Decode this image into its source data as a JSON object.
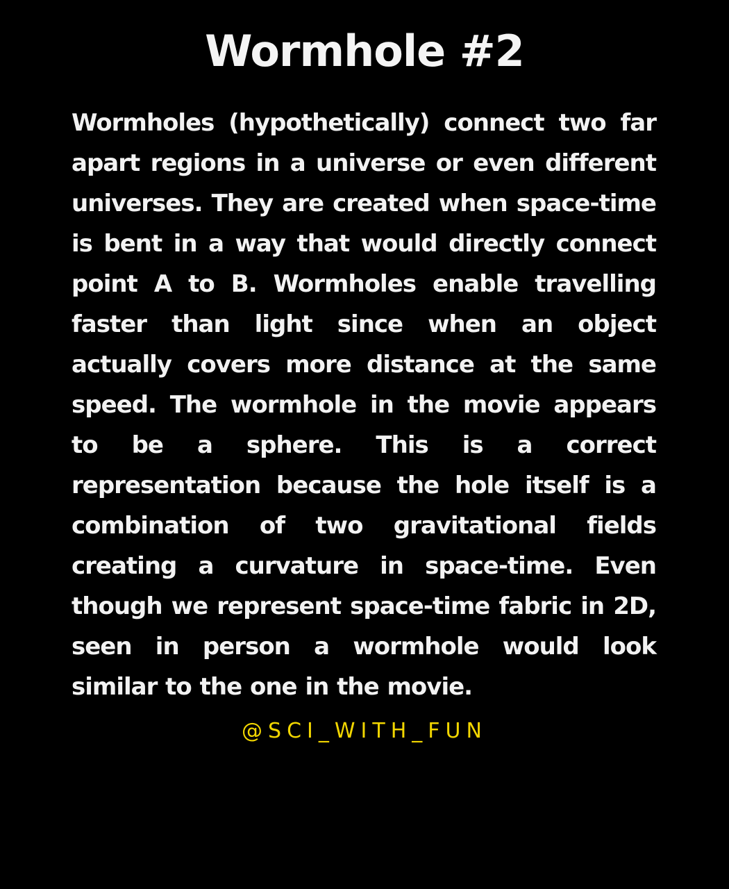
{
  "title": "Wormhole #2",
  "body": "Wormholes (hypothetically) connect two far apart regions in a universe or even different universes. They are created when space-time is bent in a way that would directly connect point A to B. Wormholes enable travelling faster than light since when an object actually covers more distance at the same speed. The wormhole in the movie appears to be a sphere. This is a correct representation because the hole itself is a combination of  two gravitational fields creating a curvature in space-time. Even though we represent space-time fabric in 2D, seen in person a wormhole would look similar to the one in the movie.",
  "handle": "@SCI_WITH_FUN",
  "colors": {
    "background": "#000000",
    "text": "#f2f2f2",
    "handle": "#f2d600"
  }
}
